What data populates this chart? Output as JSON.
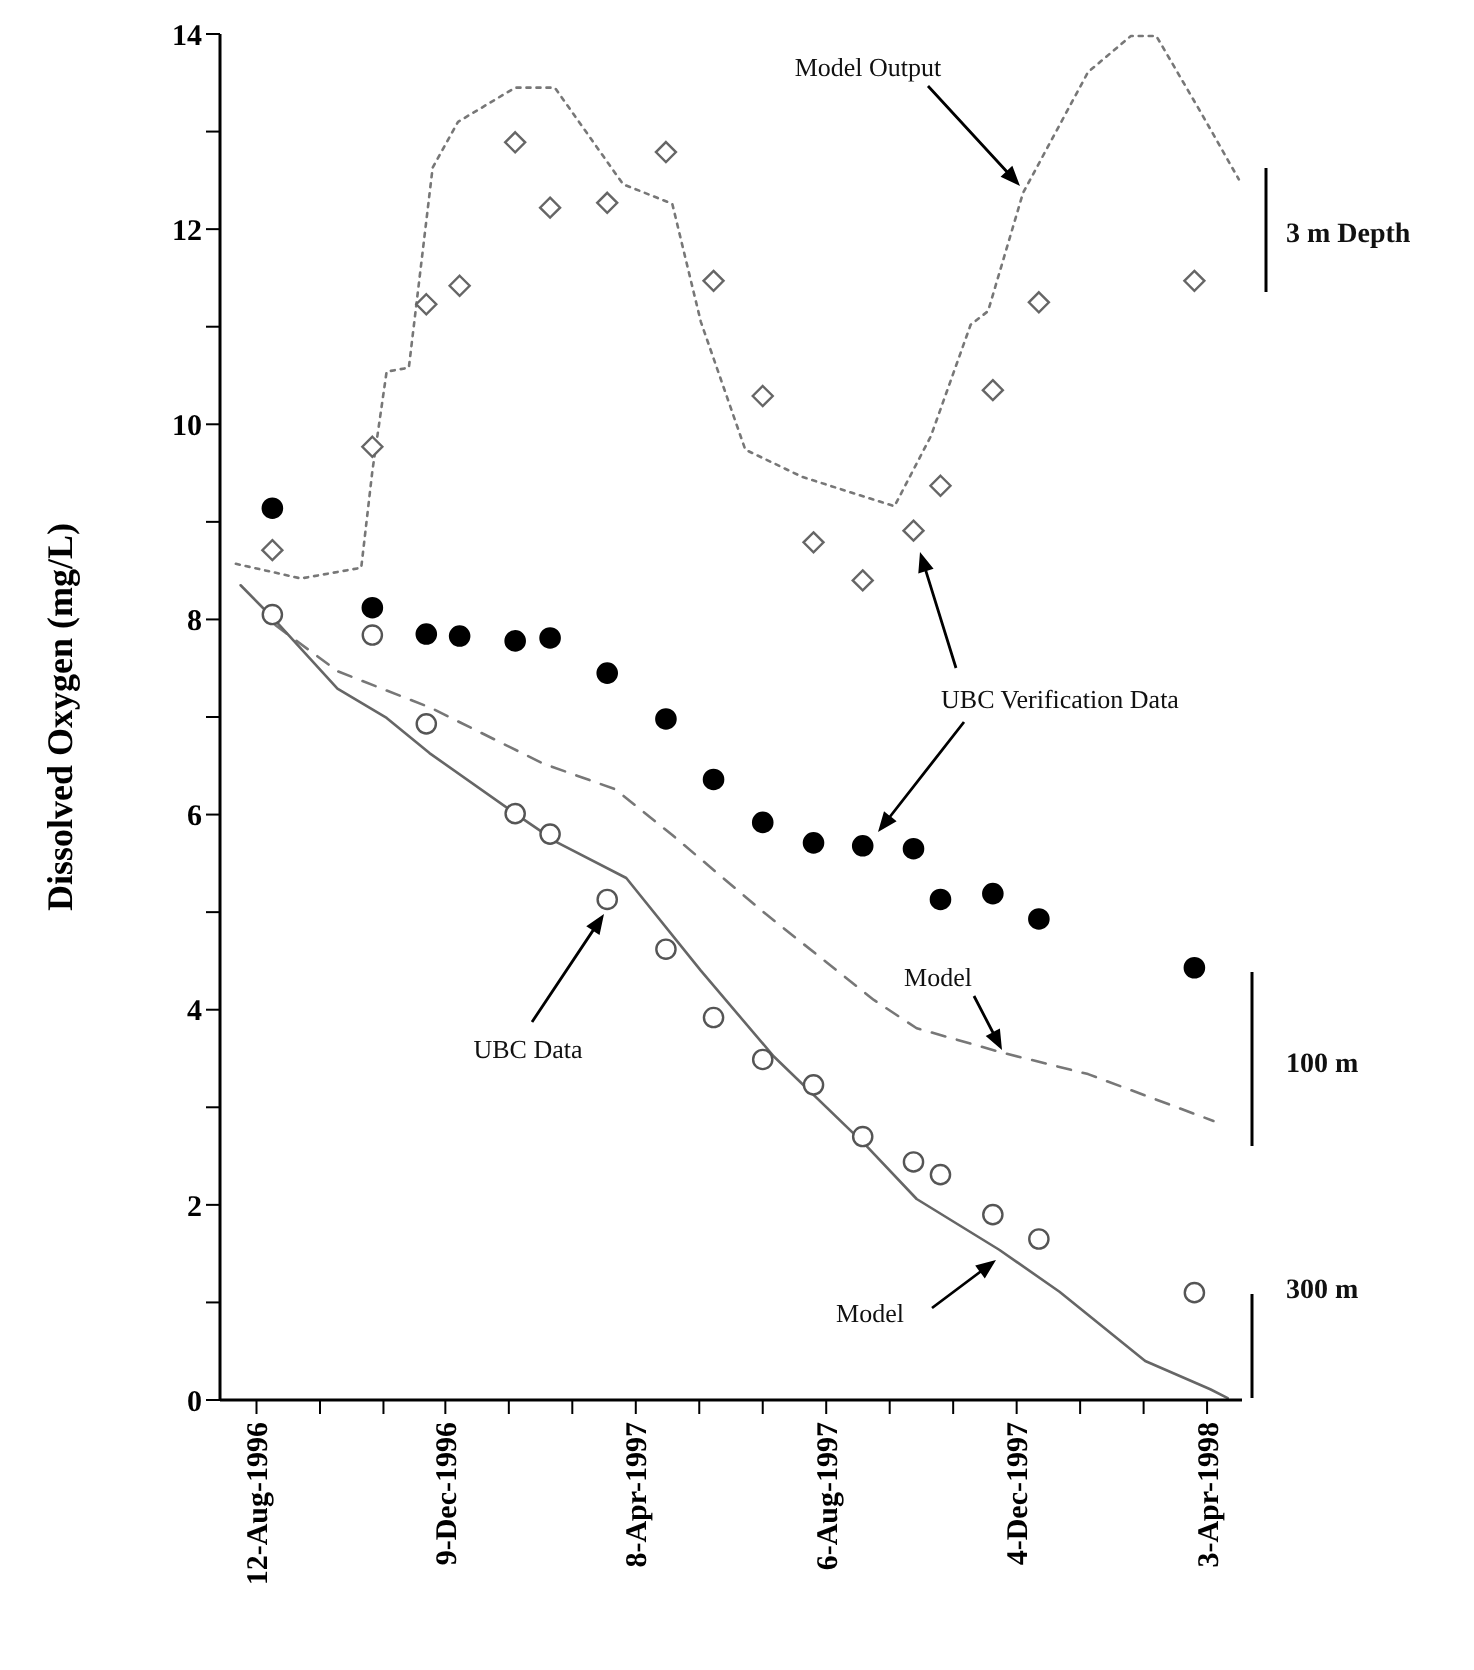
{
  "chart_data": {
    "type": "scatter",
    "ylabel": "Dissolved Oxygen (mg/L)",
    "xlim": [
      "1996-07-20",
      "1998-04-25"
    ],
    "xticks": [
      {
        "value": "1996-08-12",
        "label": "12-Aug-1996"
      },
      {
        "value": "1996-09-21",
        "label": null
      },
      {
        "value": "1996-10-31",
        "label": null
      },
      {
        "value": "1996-12-09",
        "label": "9-Dec-1996"
      },
      {
        "value": "1997-01-18",
        "label": null
      },
      {
        "value": "1997-02-27",
        "label": null
      },
      {
        "value": "1997-04-08",
        "label": "8-Apr-1997"
      },
      {
        "value": "1997-05-18",
        "label": null
      },
      {
        "value": "1997-06-27",
        "label": null
      },
      {
        "value": "1997-08-06",
        "label": "6-Aug-1997"
      },
      {
        "value": "1997-09-15",
        "label": null
      },
      {
        "value": "1997-10-25",
        "label": null
      },
      {
        "value": "1997-12-04",
        "label": "4-Dec-1997"
      },
      {
        "value": "1998-01-13",
        "label": null
      },
      {
        "value": "1998-02-22",
        "label": null
      },
      {
        "value": "1998-04-03",
        "label": "3-Apr-1998"
      }
    ],
    "ylim": [
      0,
      14
    ],
    "yticks": [
      0,
      {
        "value": 1,
        "label": null
      },
      2,
      {
        "value": 3,
        "label": null
      },
      4,
      {
        "value": 5,
        "label": null
      },
      6,
      {
        "value": 7,
        "label": null
      },
      8,
      {
        "value": 9,
        "label": null
      },
      10,
      {
        "value": 11,
        "label": null
      },
      12,
      {
        "value": 13,
        "label": null
      },
      14
    ],
    "series": [
      {
        "type": "line",
        "color": "#777777",
        "line_style": "dotted",
        "marker": "none",
        "x": [
          "1996-07-30",
          "1996-09-09",
          "1996-10-17",
          "1996-10-24",
          "1996-11-02",
          "1996-11-16",
          "1996-12-01",
          "1996-12-17",
          "1997-01-22",
          "1997-02-16",
          "1997-03-31",
          "1997-05-01",
          "1997-05-19",
          "1997-06-16",
          "1997-07-22",
          "1997-09-18",
          "1997-10-11",
          "1997-11-05",
          "1997-11-16",
          "1997-12-08",
          "1998-01-18",
          "1998-02-14",
          "1998-03-02",
          "1998-03-31",
          "1998-04-23"
        ],
        "values": [
          8.57,
          8.42,
          8.53,
          9.52,
          10.54,
          10.58,
          12.63,
          13.1,
          13.45,
          13.45,
          12.46,
          12.26,
          11.05,
          9.74,
          9.46,
          9.16,
          9.88,
          11.02,
          11.16,
          12.37,
          13.61,
          13.98,
          13.98,
          13.17,
          12.51
        ]
      },
      {
        "type": "line",
        "color": "#777777",
        "line_style": "dashed",
        "marker": "none",
        "x": [
          "1996-08-24",
          "1996-10-02",
          "1996-11-29",
          "1997-02-09",
          "1997-03-26",
          "1997-05-01",
          "1997-06-29",
          "1997-09-05",
          "1997-10-02",
          "1997-11-25",
          "1998-01-18",
          "1998-04-07"
        ],
        "values": [
          7.94,
          7.47,
          7.1,
          6.52,
          6.26,
          5.79,
          4.98,
          4.1,
          3.81,
          3.56,
          3.34,
          2.86
        ]
      },
      {
        "type": "line",
        "color": "#666666",
        "line_style": "solid",
        "marker": "none",
        "x": [
          "1996-08-02",
          "1996-08-22",
          "1996-10-02",
          "1996-11-02",
          "1996-11-29",
          "1997-01-22",
          "1997-02-18",
          "1997-04-02",
          "1997-05-19",
          "1997-07-04",
          "1997-08-31",
          "1997-10-02",
          "1997-11-23",
          "1997-12-31",
          "1998-02-23",
          "1998-04-05",
          "1998-04-16"
        ],
        "values": [
          8.35,
          8.02,
          7.29,
          6.99,
          6.63,
          6.01,
          5.71,
          5.35,
          4.4,
          3.52,
          2.61,
          2.06,
          1.54,
          1.11,
          0.4,
          0.11,
          0.02
        ]
      },
      {
        "color": "#666666",
        "marker": "diamond",
        "x": [
          "1996-08-22",
          "1996-10-24",
          "1996-11-27",
          "1996-12-18",
          "1997-01-22",
          "1997-02-13",
          "1997-03-21",
          "1997-04-27",
          "1997-05-27",
          "1997-06-27",
          "1997-07-29",
          "1997-08-29",
          "1997-09-30",
          "1997-10-17",
          "1997-11-19",
          "1997-12-18",
          "1998-03-26"
        ],
        "values": [
          8.71,
          9.77,
          11.23,
          11.42,
          12.89,
          12.22,
          12.27,
          12.79,
          11.47,
          10.29,
          8.79,
          8.4,
          8.91,
          9.37,
          10.35,
          11.25,
          11.47
        ]
      },
      {
        "color": "#000000",
        "marker": "circle",
        "x": [
          "1996-08-22",
          "1996-10-24",
          "1996-11-27",
          "1996-12-18",
          "1997-01-22",
          "1997-02-13",
          "1997-03-21",
          "1997-04-27",
          "1997-05-27",
          "1997-06-27",
          "1997-07-29",
          "1997-08-29",
          "1997-09-30",
          "1997-10-17",
          "1997-11-19",
          "1997-12-18",
          "1998-03-26"
        ],
        "values": [
          9.14,
          8.12,
          7.85,
          7.83,
          7.78,
          7.81,
          7.45,
          6.98,
          6.36,
          5.92,
          5.71,
          5.68,
          5.65,
          5.13,
          5.19,
          4.93,
          4.43
        ]
      },
      {
        "color": "#555555",
        "marker": "circle",
        "x": [
          "1996-08-22",
          "1996-10-24",
          "1996-11-27",
          "1996-12-18",
          "1997-01-22",
          "1997-02-13",
          "1997-03-21",
          "1997-04-27",
          "1997-05-27",
          "1997-06-27",
          "1997-07-29",
          "1997-08-29",
          "1997-09-30",
          "1997-10-17",
          "1997-11-19",
          "1997-12-18",
          "1998-03-26"
        ],
        "values": [
          8.05,
          7.84,
          6.93,
          null,
          6.01,
          5.8,
          5.13,
          4.62,
          3.92,
          3.49,
          3.23,
          2.7,
          2.44,
          2.31,
          1.9,
          1.65,
          1.1
        ]
      }
    ],
    "annotations": [
      "Model Output",
      "UBC Verification Data",
      "Model",
      "UBC Data",
      "Model",
      "3 m Depth",
      "100 m",
      "300 m"
    ]
  }
}
